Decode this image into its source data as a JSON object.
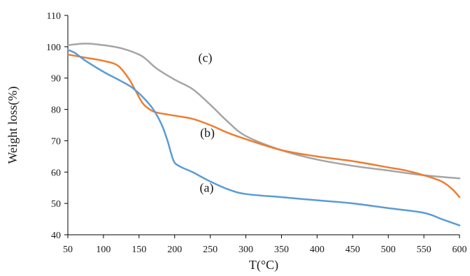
{
  "chart_data": {
    "type": "line",
    "title": "",
    "xlabel": "T(°C)",
    "ylabel": "Weight loss(%)",
    "xlim": [
      50,
      600
    ],
    "ylim": [
      40,
      110
    ],
    "xticks": [
      50,
      100,
      150,
      200,
      250,
      300,
      350,
      400,
      450,
      500,
      550,
      600
    ],
    "yticks": [
      40,
      50,
      60,
      70,
      80,
      90,
      100,
      110
    ],
    "grid": false,
    "series": [
      {
        "name": "(a)",
        "color": "#5b9bd5",
        "x": [
          50,
          60,
          75,
          100,
          125,
          140,
          155,
          170,
          182,
          190,
          195,
          200,
          210,
          225,
          250,
          275,
          300,
          350,
          400,
          450,
          500,
          550,
          575,
          600
        ],
        "y": [
          99,
          98,
          95.5,
          92,
          89,
          87,
          84,
          80,
          75,
          70,
          66,
          63,
          61.5,
          60,
          57,
          54.5,
          53,
          52,
          51,
          50,
          48.5,
          47,
          45,
          43
        ]
      },
      {
        "name": "(b)",
        "color": "#ed7d31",
        "x": [
          50,
          75,
          100,
          120,
          135,
          145,
          155,
          165,
          175,
          200,
          225,
          250,
          275,
          300,
          350,
          400,
          450,
          500,
          525,
          550,
          575,
          590,
          600
        ],
        "y": [
          97.5,
          96.5,
          95.5,
          94,
          90,
          86,
          82,
          80,
          79,
          78,
          77,
          75,
          72.5,
          70.5,
          67,
          65,
          63.5,
          61.5,
          60.5,
          59,
          57,
          54.5,
          52
        ]
      },
      {
        "name": "(c)",
        "color": "#a5a5a5",
        "x": [
          50,
          75,
          100,
          125,
          150,
          160,
          175,
          200,
          225,
          250,
          275,
          300,
          350,
          400,
          450,
          500,
          550,
          600
        ],
        "y": [
          100.5,
          101,
          100.5,
          99.5,
          97.5,
          96,
          93,
          89.5,
          86.5,
          81.5,
          76,
          71.5,
          67,
          64,
          62,
          60.5,
          59,
          58
        ]
      }
    ],
    "annotations": [
      {
        "text": "(c)",
        "x": 243,
        "y": 96.5
      },
      {
        "text": "(b)",
        "x": 246,
        "y": 72.5
      },
      {
        "text": "(a)",
        "x": 245,
        "y": 55
      }
    ]
  }
}
